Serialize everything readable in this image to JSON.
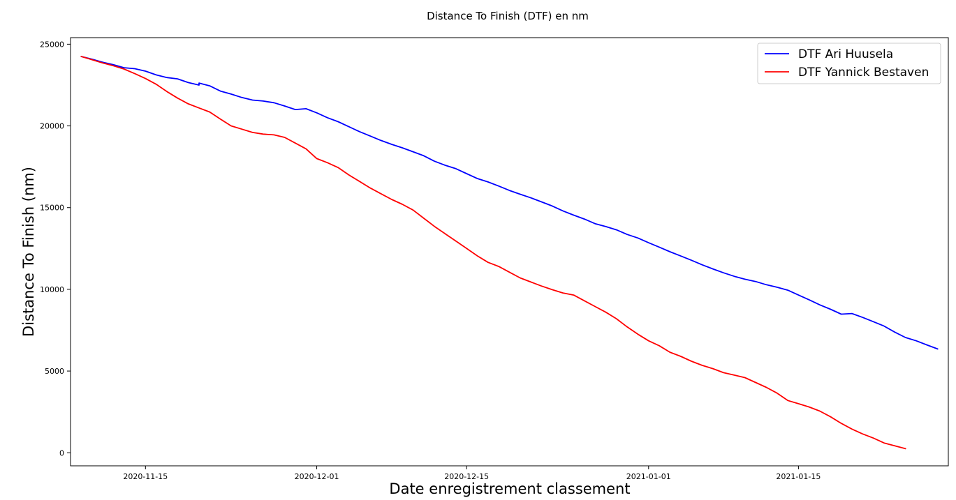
{
  "chart_data": {
    "type": "line",
    "title": "Distance To Finish (DTF) en nm",
    "xlabel": "Date enregistrement classement",
    "ylabel": "Distance To Finish (nm)",
    "x_type": "date",
    "xlim": [
      "2020-11-08",
      "2021-01-29"
    ],
    "ylim": [
      -800,
      25400
    ],
    "x_ticks": [
      "2020-11-15",
      "2020-12-01",
      "2020-12-15",
      "2021-01-01",
      "2021-01-15"
    ],
    "y_ticks": [
      0,
      5000,
      10000,
      15000,
      20000,
      25000
    ],
    "grid": false,
    "legend": {
      "position": "top-right"
    },
    "series": [
      {
        "name": "DTF Ari Huusela",
        "color": "#0000ff",
        "points": [
          [
            "2020-11-09",
            24250
          ],
          [
            "2020-11-10",
            24080
          ],
          [
            "2020-11-11",
            23900
          ],
          [
            "2020-11-12",
            23750
          ],
          [
            "2020-11-13",
            23560
          ],
          [
            "2020-11-14",
            23500
          ],
          [
            "2020-11-15",
            23350
          ],
          [
            "2020-11-16",
            23120
          ],
          [
            "2020-11-17",
            22960
          ],
          [
            "2020-11-18",
            22880
          ],
          [
            "2020-11-19",
            22650
          ],
          [
            "2020-11-20",
            22500
          ],
          [
            "2020-11-20",
            22620
          ],
          [
            "2020-11-21",
            22450
          ],
          [
            "2020-11-22",
            22130
          ],
          [
            "2020-11-23",
            21950
          ],
          [
            "2020-11-24",
            21740
          ],
          [
            "2020-11-25",
            21580
          ],
          [
            "2020-11-26",
            21520
          ],
          [
            "2020-11-27",
            21420
          ],
          [
            "2020-11-28",
            21220
          ],
          [
            "2020-11-29",
            21000
          ],
          [
            "2020-11-30",
            21050
          ],
          [
            "2020-12-01",
            20800
          ],
          [
            "2020-12-02",
            20500
          ],
          [
            "2020-12-03",
            20260
          ],
          [
            "2020-12-04",
            19950
          ],
          [
            "2020-12-05",
            19650
          ],
          [
            "2020-12-06",
            19380
          ],
          [
            "2020-12-07",
            19110
          ],
          [
            "2020-12-08",
            18870
          ],
          [
            "2020-12-09",
            18660
          ],
          [
            "2020-12-10",
            18420
          ],
          [
            "2020-12-11",
            18170
          ],
          [
            "2020-12-12",
            17840
          ],
          [
            "2020-12-13",
            17590
          ],
          [
            "2020-12-14",
            17380
          ],
          [
            "2020-12-15",
            17080
          ],
          [
            "2020-12-16",
            16780
          ],
          [
            "2020-12-17",
            16570
          ],
          [
            "2020-12-18",
            16320
          ],
          [
            "2020-12-19",
            16050
          ],
          [
            "2020-12-20",
            15820
          ],
          [
            "2020-12-21",
            15600
          ],
          [
            "2020-12-22",
            15350
          ],
          [
            "2020-12-23",
            15100
          ],
          [
            "2020-12-24",
            14800
          ],
          [
            "2020-12-25",
            14540
          ],
          [
            "2020-12-26",
            14300
          ],
          [
            "2020-12-27",
            14020
          ],
          [
            "2020-12-28",
            13840
          ],
          [
            "2020-12-29",
            13640
          ],
          [
            "2020-12-30",
            13360
          ],
          [
            "2020-12-31",
            13140
          ],
          [
            "2021-01-01",
            12850
          ],
          [
            "2021-01-02",
            12580
          ],
          [
            "2021-01-03",
            12300
          ],
          [
            "2021-01-04",
            12040
          ],
          [
            "2021-01-05",
            11780
          ],
          [
            "2021-01-06",
            11500
          ],
          [
            "2021-01-07",
            11250
          ],
          [
            "2021-01-08",
            11010
          ],
          [
            "2021-01-09",
            10800
          ],
          [
            "2021-01-10",
            10620
          ],
          [
            "2021-01-11",
            10480
          ],
          [
            "2021-01-12",
            10280
          ],
          [
            "2021-01-13",
            10130
          ],
          [
            "2021-01-14",
            9950
          ],
          [
            "2021-01-15",
            9650
          ],
          [
            "2021-01-16",
            9360
          ],
          [
            "2021-01-17",
            9050
          ],
          [
            "2021-01-18",
            8780
          ],
          [
            "2021-01-19",
            8480
          ],
          [
            "2021-01-20",
            8520
          ],
          [
            "2021-01-21",
            8280
          ],
          [
            "2021-01-22",
            8020
          ],
          [
            "2021-01-23",
            7750
          ],
          [
            "2021-01-24",
            7380
          ],
          [
            "2021-01-25",
            7050
          ],
          [
            "2021-01-26",
            6850
          ],
          [
            "2021-01-27",
            6600
          ],
          [
            "2021-01-28",
            6350
          ]
        ]
      },
      {
        "name": "DTF Yannick Bestaven",
        "color": "#ff0000",
        "points": [
          [
            "2020-11-09",
            24250
          ],
          [
            "2020-11-10",
            24050
          ],
          [
            "2020-11-11",
            23850
          ],
          [
            "2020-11-12",
            23680
          ],
          [
            "2020-11-13",
            23480
          ],
          [
            "2020-11-14",
            23200
          ],
          [
            "2020-11-15",
            22900
          ],
          [
            "2020-11-16",
            22550
          ],
          [
            "2020-11-17",
            22100
          ],
          [
            "2020-11-18",
            21700
          ],
          [
            "2020-11-19",
            21350
          ],
          [
            "2020-11-20",
            21100
          ],
          [
            "2020-11-21",
            20850
          ],
          [
            "2020-11-22",
            20420
          ],
          [
            "2020-11-23",
            20000
          ],
          [
            "2020-11-24",
            19800
          ],
          [
            "2020-11-25",
            19600
          ],
          [
            "2020-11-26",
            19500
          ],
          [
            "2020-11-27",
            19450
          ],
          [
            "2020-11-28",
            19300
          ],
          [
            "2020-11-29",
            18950
          ],
          [
            "2020-11-30",
            18600
          ],
          [
            "2020-12-01",
            18000
          ],
          [
            "2020-12-02",
            17750
          ],
          [
            "2020-12-03",
            17450
          ],
          [
            "2020-12-04",
            17000
          ],
          [
            "2020-12-05",
            16600
          ],
          [
            "2020-12-06",
            16200
          ],
          [
            "2020-12-07",
            15850
          ],
          [
            "2020-12-08",
            15500
          ],
          [
            "2020-12-09",
            15200
          ],
          [
            "2020-12-10",
            14850
          ],
          [
            "2020-12-11",
            14350
          ],
          [
            "2020-12-12",
            13850
          ],
          [
            "2020-12-13",
            13400
          ],
          [
            "2020-12-14",
            12950
          ],
          [
            "2020-12-15",
            12500
          ],
          [
            "2020-12-16",
            12050
          ],
          [
            "2020-12-17",
            11650
          ],
          [
            "2020-12-18",
            11400
          ],
          [
            "2020-12-19",
            11050
          ],
          [
            "2020-12-20",
            10700
          ],
          [
            "2020-12-21",
            10450
          ],
          [
            "2020-12-22",
            10200
          ],
          [
            "2020-12-23",
            9980
          ],
          [
            "2020-12-24",
            9780
          ],
          [
            "2020-12-25",
            9650
          ],
          [
            "2020-12-26",
            9300
          ],
          [
            "2020-12-27",
            8950
          ],
          [
            "2020-12-28",
            8600
          ],
          [
            "2020-12-29",
            8200
          ],
          [
            "2020-12-30",
            7700
          ],
          [
            "2020-12-31",
            7250
          ],
          [
            "2021-01-01",
            6850
          ],
          [
            "2021-01-02",
            6550
          ],
          [
            "2021-01-03",
            6150
          ],
          [
            "2021-01-04",
            5900
          ],
          [
            "2021-01-05",
            5600
          ],
          [
            "2021-01-06",
            5350
          ],
          [
            "2021-01-07",
            5150
          ],
          [
            "2021-01-08",
            4900
          ],
          [
            "2021-01-09",
            4750
          ],
          [
            "2021-01-10",
            4600
          ],
          [
            "2021-01-11",
            4300
          ],
          [
            "2021-01-12",
            4000
          ],
          [
            "2021-01-13",
            3650
          ],
          [
            "2021-01-14",
            3200
          ],
          [
            "2021-01-15",
            3000
          ],
          [
            "2021-01-16",
            2800
          ],
          [
            "2021-01-17",
            2550
          ],
          [
            "2021-01-18",
            2200
          ],
          [
            "2021-01-19",
            1800
          ],
          [
            "2021-01-20",
            1450
          ],
          [
            "2021-01-21",
            1150
          ],
          [
            "2021-01-22",
            900
          ],
          [
            "2021-01-23",
            600
          ],
          [
            "2021-01-25",
            250
          ]
        ]
      }
    ]
  }
}
